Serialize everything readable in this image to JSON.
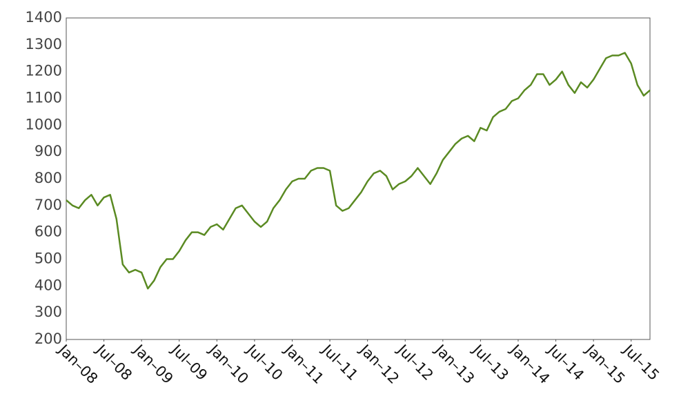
{
  "chart_data": {
    "type": "line",
    "color": "#5a8a22",
    "xlim": [
      "2008-01",
      "2015-10"
    ],
    "ylim": [
      200,
      1400
    ],
    "yticks": [
      200,
      300,
      400,
      500,
      600,
      700,
      800,
      900,
      1000,
      1100,
      1200,
      1300,
      1400
    ],
    "xticks": [
      {
        "value": "2008-01",
        "label": "Jan–08"
      },
      {
        "value": "2008-07",
        "label": "Jul–08"
      },
      {
        "value": "2009-01",
        "label": "Jan–09"
      },
      {
        "value": "2009-07",
        "label": "Jul–09"
      },
      {
        "value": "2010-01",
        "label": "Jan–10"
      },
      {
        "value": "2010-07",
        "label": "Jul–10"
      },
      {
        "value": "2011-01",
        "label": "Jan–11"
      },
      {
        "value": "2011-07",
        "label": "Jul–11"
      },
      {
        "value": "2012-01",
        "label": "Jan–12"
      },
      {
        "value": "2012-07",
        "label": "Jul–12"
      },
      {
        "value": "2013-01",
        "label": "Jan–13"
      },
      {
        "value": "2013-07",
        "label": "Jul–13"
      },
      {
        "value": "2014-01",
        "label": "Jan–14"
      },
      {
        "value": "2014-07",
        "label": "Jul–14"
      },
      {
        "value": "2015-01",
        "label": "Jan–15"
      },
      {
        "value": "2015-07",
        "label": "Jul–15"
      }
    ],
    "x": [
      "2008-01",
      "2008-02",
      "2008-03",
      "2008-04",
      "2008-05",
      "2008-06",
      "2008-07",
      "2008-08",
      "2008-09",
      "2008-10",
      "2008-11",
      "2008-12",
      "2009-01",
      "2009-02",
      "2009-03",
      "2009-04",
      "2009-05",
      "2009-06",
      "2009-07",
      "2009-08",
      "2009-09",
      "2009-10",
      "2009-11",
      "2009-12",
      "2010-01",
      "2010-02",
      "2010-03",
      "2010-04",
      "2010-05",
      "2010-06",
      "2010-07",
      "2010-08",
      "2010-09",
      "2010-10",
      "2010-11",
      "2010-12",
      "2011-01",
      "2011-02",
      "2011-03",
      "2011-04",
      "2011-05",
      "2011-06",
      "2011-07",
      "2011-08",
      "2011-09",
      "2011-10",
      "2011-11",
      "2011-12",
      "2012-01",
      "2012-02",
      "2012-03",
      "2012-04",
      "2012-05",
      "2012-06",
      "2012-07",
      "2012-08",
      "2012-09",
      "2012-10",
      "2012-11",
      "2012-12",
      "2013-01",
      "2013-02",
      "2013-03",
      "2013-04",
      "2013-05",
      "2013-06",
      "2013-07",
      "2013-08",
      "2013-09",
      "2013-10",
      "2013-11",
      "2013-12",
      "2014-01",
      "2014-02",
      "2014-03",
      "2014-04",
      "2014-05",
      "2014-06",
      "2014-07",
      "2014-08",
      "2014-09",
      "2014-10",
      "2014-11",
      "2014-12",
      "2015-01",
      "2015-02",
      "2015-03",
      "2015-04",
      "2015-05",
      "2015-06",
      "2015-07",
      "2015-08",
      "2015-09",
      "2015-10"
    ],
    "values": [
      720,
      700,
      690,
      720,
      740,
      700,
      730,
      740,
      650,
      480,
      450,
      460,
      450,
      390,
      420,
      470,
      500,
      500,
      530,
      570,
      600,
      600,
      590,
      620,
      630,
      610,
      650,
      690,
      700,
      670,
      640,
      620,
      640,
      690,
      720,
      760,
      790,
      800,
      800,
      830,
      840,
      840,
      830,
      700,
      680,
      690,
      720,
      750,
      790,
      820,
      830,
      810,
      760,
      780,
      790,
      810,
      840,
      810,
      780,
      820,
      870,
      900,
      930,
      950,
      960,
      940,
      990,
      980,
      1030,
      1050,
      1060,
      1090,
      1100,
      1130,
      1150,
      1190,
      1190,
      1150,
      1170,
      1200,
      1150,
      1120,
      1160,
      1140,
      1170,
      1210,
      1250,
      1260,
      1260,
      1270,
      1230,
      1150,
      1110,
      1130
    ]
  }
}
